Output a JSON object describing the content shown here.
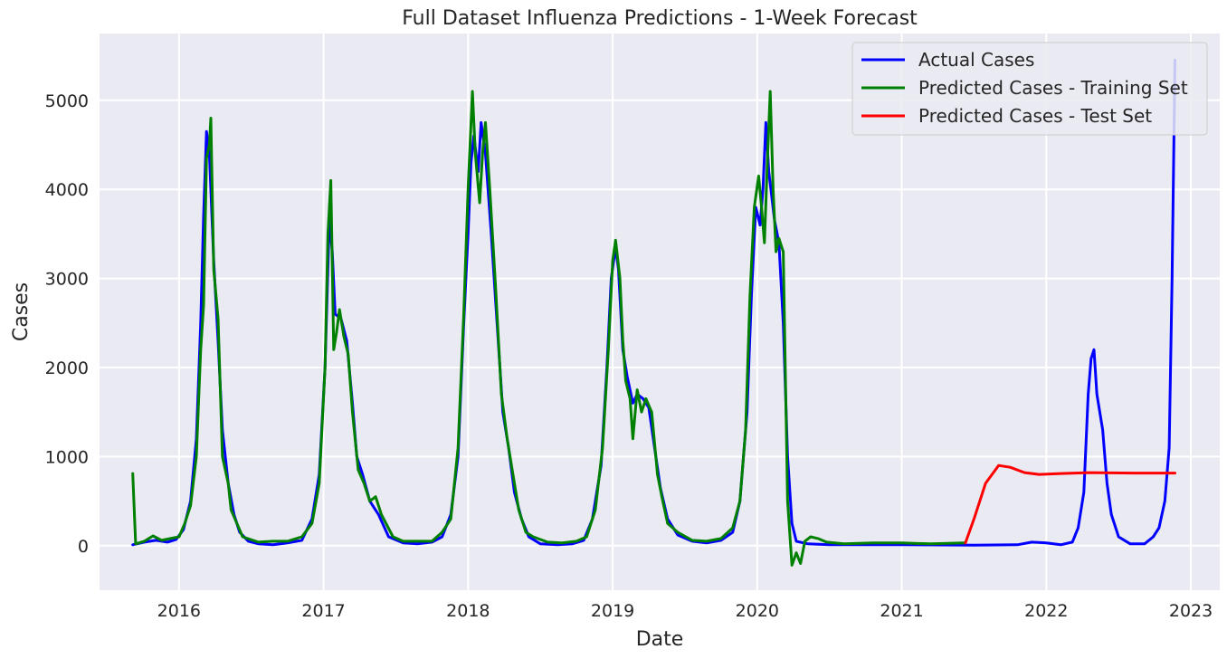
{
  "chart_data": {
    "type": "line",
    "title": "Full Dataset Influenza Predictions - 1-Week Forecast",
    "xlabel": "Date",
    "ylabel": "Cases",
    "xlim": [
      2015.45,
      2023.2
    ],
    "ylim": [
      -500,
      5750
    ],
    "xticks": [
      2016,
      2017,
      2018,
      2019,
      2020,
      2021,
      2022,
      2023
    ],
    "yticks": [
      0,
      1000,
      2000,
      3000,
      4000,
      5000
    ],
    "grid": true,
    "legend_position": "top-right",
    "background": "#eaeaf2",
    "series": [
      {
        "name": "Actual Cases",
        "color": "#0000ff",
        "points": [
          [
            2015.68,
            10
          ],
          [
            2015.76,
            40
          ],
          [
            2015.84,
            60
          ],
          [
            2015.92,
            40
          ],
          [
            2015.98,
            70
          ],
          [
            2016.03,
            180
          ],
          [
            2016.08,
            500
          ],
          [
            2016.12,
            1200
          ],
          [
            2016.15,
            2500
          ],
          [
            2016.17,
            3700
          ],
          [
            2016.19,
            4650
          ],
          [
            2016.21,
            4400
          ],
          [
            2016.24,
            3200
          ],
          [
            2016.27,
            2300
          ],
          [
            2016.3,
            1300
          ],
          [
            2016.34,
            700
          ],
          [
            2016.38,
            350
          ],
          [
            2016.42,
            150
          ],
          [
            2016.48,
            50
          ],
          [
            2016.55,
            20
          ],
          [
            2016.65,
            10
          ],
          [
            2016.75,
            30
          ],
          [
            2016.85,
            60
          ],
          [
            2016.92,
            300
          ],
          [
            2016.97,
            800
          ],
          [
            2017.01,
            2000
          ],
          [
            2017.04,
            3680
          ],
          [
            2017.06,
            3300
          ],
          [
            2017.08,
            2600
          ],
          [
            2017.12,
            2550
          ],
          [
            2017.16,
            2300
          ],
          [
            2017.2,
            1600
          ],
          [
            2017.23,
            1000
          ],
          [
            2017.27,
            800
          ],
          [
            2017.32,
            500
          ],
          [
            2017.38,
            350
          ],
          [
            2017.45,
            100
          ],
          [
            2017.55,
            30
          ],
          [
            2017.65,
            20
          ],
          [
            2017.75,
            40
          ],
          [
            2017.82,
            100
          ],
          [
            2017.88,
            350
          ],
          [
            2017.93,
            1000
          ],
          [
            2017.97,
            2500
          ],
          [
            2018.0,
            3500
          ],
          [
            2018.02,
            4300
          ],
          [
            2018.04,
            4600
          ],
          [
            2018.07,
            4200
          ],
          [
            2018.09,
            4750
          ],
          [
            2018.12,
            4400
          ],
          [
            2018.16,
            3500
          ],
          [
            2018.2,
            2500
          ],
          [
            2018.24,
            1500
          ],
          [
            2018.28,
            1100
          ],
          [
            2018.32,
            600
          ],
          [
            2018.37,
            300
          ],
          [
            2018.42,
            100
          ],
          [
            2018.5,
            20
          ],
          [
            2018.62,
            10
          ],
          [
            2018.72,
            20
          ],
          [
            2018.8,
            60
          ],
          [
            2018.86,
            300
          ],
          [
            2018.92,
            900
          ],
          [
            2018.96,
            2000
          ],
          [
            2018.99,
            3000
          ],
          [
            2019.02,
            3350
          ],
          [
            2019.04,
            3100
          ],
          [
            2019.07,
            2200
          ],
          [
            2019.1,
            1900
          ],
          [
            2019.14,
            1600
          ],
          [
            2019.17,
            1700
          ],
          [
            2019.21,
            1650
          ],
          [
            2019.25,
            1550
          ],
          [
            2019.29,
            1100
          ],
          [
            2019.33,
            650
          ],
          [
            2019.38,
            300
          ],
          [
            2019.45,
            120
          ],
          [
            2019.55,
            50
          ],
          [
            2019.65,
            30
          ],
          [
            2019.75,
            60
          ],
          [
            2019.83,
            150
          ],
          [
            2019.88,
            500
          ],
          [
            2019.93,
            1500
          ],
          [
            2019.96,
            2800
          ],
          [
            2019.99,
            3800
          ],
          [
            2020.02,
            3600
          ],
          [
            2020.04,
            4000
          ],
          [
            2020.06,
            4750
          ],
          [
            2020.08,
            4200
          ],
          [
            2020.12,
            3650
          ],
          [
            2020.15,
            3400
          ],
          [
            2020.18,
            2500
          ],
          [
            2020.21,
            1000
          ],
          [
            2020.24,
            250
          ],
          [
            2020.27,
            50
          ],
          [
            2020.35,
            20
          ],
          [
            2020.5,
            10
          ],
          [
            2021.0,
            10
          ],
          [
            2021.5,
            5
          ],
          [
            2021.8,
            10
          ],
          [
            2021.9,
            40
          ],
          [
            2022.0,
            30
          ],
          [
            2022.1,
            10
          ],
          [
            2022.18,
            40
          ],
          [
            2022.22,
            200
          ],
          [
            2022.26,
            600
          ],
          [
            2022.29,
            1700
          ],
          [
            2022.31,
            2100
          ],
          [
            2022.33,
            2200
          ],
          [
            2022.35,
            1700
          ],
          [
            2022.39,
            1300
          ],
          [
            2022.42,
            700
          ],
          [
            2022.45,
            350
          ],
          [
            2022.5,
            100
          ],
          [
            2022.58,
            20
          ],
          [
            2022.68,
            20
          ],
          [
            2022.74,
            100
          ],
          [
            2022.78,
            200
          ],
          [
            2022.82,
            500
          ],
          [
            2022.85,
            1100
          ],
          [
            2022.87,
            3000
          ],
          [
            2022.89,
            5450
          ]
        ]
      },
      {
        "name": "Predicted Cases - Training Set",
        "color": "#008000",
        "points": [
          [
            2015.68,
            810
          ],
          [
            2015.7,
            20
          ],
          [
            2015.76,
            50
          ],
          [
            2015.82,
            110
          ],
          [
            2015.88,
            60
          ],
          [
            2015.94,
            80
          ],
          [
            2016.0,
            100
          ],
          [
            2016.04,
            250
          ],
          [
            2016.08,
            450
          ],
          [
            2016.12,
            1000
          ],
          [
            2016.15,
            2200
          ],
          [
            2016.17,
            2700
          ],
          [
            2016.19,
            4350
          ],
          [
            2016.21,
            4500
          ],
          [
            2016.22,
            4800
          ],
          [
            2016.24,
            3100
          ],
          [
            2016.27,
            2550
          ],
          [
            2016.3,
            1000
          ],
          [
            2016.34,
            700
          ],
          [
            2016.36,
            400
          ],
          [
            2016.4,
            250
          ],
          [
            2016.44,
            100
          ],
          [
            2016.55,
            40
          ],
          [
            2016.65,
            50
          ],
          [
            2016.75,
            50
          ],
          [
            2016.85,
            100
          ],
          [
            2016.92,
            250
          ],
          [
            2016.97,
            700
          ],
          [
            2017.01,
            2000
          ],
          [
            2017.03,
            3500
          ],
          [
            2017.05,
            4100
          ],
          [
            2017.07,
            2200
          ],
          [
            2017.09,
            2400
          ],
          [
            2017.11,
            2650
          ],
          [
            2017.14,
            2350
          ],
          [
            2017.17,
            2150
          ],
          [
            2017.2,
            1500
          ],
          [
            2017.24,
            850
          ],
          [
            2017.28,
            700
          ],
          [
            2017.32,
            500
          ],
          [
            2017.36,
            550
          ],
          [
            2017.4,
            350
          ],
          [
            2017.48,
            100
          ],
          [
            2017.55,
            50
          ],
          [
            2017.65,
            50
          ],
          [
            2017.75,
            50
          ],
          [
            2017.82,
            150
          ],
          [
            2017.88,
            300
          ],
          [
            2017.93,
            1100
          ],
          [
            2017.97,
            2600
          ],
          [
            2018.0,
            4000
          ],
          [
            2018.03,
            5100
          ],
          [
            2018.05,
            4400
          ],
          [
            2018.08,
            3850
          ],
          [
            2018.1,
            4400
          ],
          [
            2018.12,
            4750
          ],
          [
            2018.15,
            4000
          ],
          [
            2018.19,
            2900
          ],
          [
            2018.23,
            1700
          ],
          [
            2018.27,
            1200
          ],
          [
            2018.31,
            800
          ],
          [
            2018.35,
            400
          ],
          [
            2018.4,
            150
          ],
          [
            2018.45,
            100
          ],
          [
            2018.55,
            40
          ],
          [
            2018.65,
            30
          ],
          [
            2018.75,
            50
          ],
          [
            2018.82,
            100
          ],
          [
            2018.88,
            400
          ],
          [
            2018.93,
            1100
          ],
          [
            2018.97,
            2200
          ],
          [
            2019.0,
            3200
          ],
          [
            2019.02,
            3430
          ],
          [
            2019.05,
            3000
          ],
          [
            2019.07,
            2300
          ],
          [
            2019.09,
            1850
          ],
          [
            2019.12,
            1650
          ],
          [
            2019.14,
            1200
          ],
          [
            2019.17,
            1750
          ],
          [
            2019.2,
            1500
          ],
          [
            2019.23,
            1650
          ],
          [
            2019.27,
            1500
          ],
          [
            2019.31,
            800
          ],
          [
            2019.34,
            550
          ],
          [
            2019.38,
            250
          ],
          [
            2019.45,
            150
          ],
          [
            2019.55,
            60
          ],
          [
            2019.65,
            50
          ],
          [
            2019.75,
            80
          ],
          [
            2019.83,
            200
          ],
          [
            2019.88,
            500
          ],
          [
            2019.92,
            1300
          ],
          [
            2019.95,
            2800
          ],
          [
            2019.98,
            3800
          ],
          [
            2020.01,
            4150
          ],
          [
            2020.03,
            3800
          ],
          [
            2020.05,
            3400
          ],
          [
            2020.07,
            4300
          ],
          [
            2020.09,
            5100
          ],
          [
            2020.11,
            4000
          ],
          [
            2020.13,
            3300
          ],
          [
            2020.15,
            3450
          ],
          [
            2020.18,
            3300
          ],
          [
            2020.21,
            500
          ],
          [
            2020.24,
            -220
          ],
          [
            2020.27,
            -80
          ],
          [
            2020.3,
            -200
          ],
          [
            2020.33,
            50
          ],
          [
            2020.37,
            100
          ],
          [
            2020.42,
            80
          ],
          [
            2020.48,
            40
          ],
          [
            2020.6,
            20
          ],
          [
            2020.8,
            30
          ],
          [
            2021.0,
            30
          ],
          [
            2021.2,
            20
          ],
          [
            2021.43,
            30
          ]
        ]
      },
      {
        "name": "Predicted Cases - Test Set",
        "color": "#ff0000",
        "points": [
          [
            2021.44,
            30
          ],
          [
            2021.5,
            300
          ],
          [
            2021.58,
            700
          ],
          [
            2021.67,
            900
          ],
          [
            2021.75,
            880
          ],
          [
            2021.85,
            820
          ],
          [
            2021.95,
            800
          ],
          [
            2022.1,
            810
          ],
          [
            2022.3,
            820
          ],
          [
            2022.6,
            815
          ],
          [
            2022.89,
            815
          ]
        ]
      }
    ]
  }
}
